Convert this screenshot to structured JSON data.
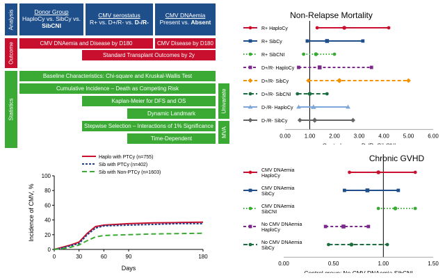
{
  "flow": {
    "side_labels": {
      "analysis": "Analysis",
      "outcome": "Outcome",
      "statistics": "Statistics",
      "univariate": "Univariate",
      "mva": "MVA"
    },
    "analysis": {
      "donor_title": "Donor Group",
      "donor_line": "HaploCy vs. SibCy vs.",
      "donor_bold": "SibCNI",
      "serostatus_title": "CMV serostatus",
      "serostatus_line": "R+ vs. D+/R- vs.",
      "serostatus_bold": "D-/R-",
      "dnaemia_title": "CMV DNAemia",
      "dnaemia_line": "Present vs.",
      "dnaemia_bold": "Absent"
    },
    "outcomes": {
      "o1": "CMV DNAemia and Disease by D180",
      "o2": "CMV Disease by D180",
      "o3": "Standard Transplant Outcomes by 2y"
    },
    "stats": {
      "s1": "Baseline Characteristics: Chi-square and Kruskal-Wallis Test",
      "s2": "Cumulative Incidence – Death as Competing Risk",
      "s3": "Kaplan-Meier for DFS and OS",
      "s4": "Dynamic Landmark",
      "s5": "Stepwise Selection – Interactions of 1% Significance",
      "s6": "Time-Dependent"
    }
  },
  "chart_data": [
    {
      "type": "line",
      "id": "cmv_incidence",
      "xlabel": "Days",
      "ylabel": "Incidence of CMV, %",
      "xlim": [
        0,
        180
      ],
      "ylim": [
        0,
        100
      ],
      "xticks": [
        0,
        30,
        60,
        90,
        180
      ],
      "yticks": [
        0,
        20,
        40,
        60,
        80,
        100
      ],
      "series": [
        {
          "name": "Haplo with PTCy (n=755)",
          "color": "#c8102e",
          "dash": "",
          "x": [
            0,
            10,
            20,
            30,
            40,
            50,
            60,
            90,
            120,
            150,
            180
          ],
          "y": [
            0,
            3,
            6,
            10,
            22,
            31,
            33,
            35,
            36,
            36.5,
            37
          ]
        },
        {
          "name": "Sib with PTCy (n=402)",
          "color": "#1f3f8a",
          "dash": "3,2",
          "x": [
            0,
            10,
            20,
            30,
            40,
            50,
            60,
            90,
            120,
            150,
            180
          ],
          "y": [
            0,
            2,
            5,
            8,
            20,
            29,
            32,
            33,
            34,
            35,
            35
          ]
        },
        {
          "name": "Sib with Non-PTCy (n=1603)",
          "color": "#3aaa35",
          "dash": "7,4",
          "x": [
            0,
            10,
            20,
            30,
            40,
            50,
            60,
            90,
            120,
            150,
            180
          ],
          "y": [
            0,
            1,
            3,
            6,
            12,
            17,
            19,
            20,
            21,
            21.5,
            22
          ]
        }
      ]
    },
    {
      "type": "forest",
      "id": "nrm",
      "title": "Non-Relapse Mortality",
      "xlabel": "Control group: D-/R- SibCNI",
      "xlim": [
        0,
        6
      ],
      "xticks": [
        "0.00",
        "1.00",
        "2.00",
        "3.00",
        "4.00",
        "5.00",
        "6.00"
      ],
      "reference": 1,
      "rows": [
        {
          "label": "R+ HaploCy",
          "color": "#c8102e",
          "marker": "circle",
          "dash": "",
          "est": 2.4,
          "lo": 1.3,
          "hi": 4.2
        },
        {
          "label": "R+ SibCy",
          "color": "#1f4f8a",
          "marker": "square",
          "dash": "",
          "est": 1.7,
          "lo": 0.9,
          "hi": 3.15
        },
        {
          "label": "R+ SibCNI",
          "color": "#3aaa35",
          "marker": "circle",
          "dash": "1.5,2.5",
          "est": 1.25,
          "lo": 0.75,
          "hi": 2.0
        },
        {
          "label": "D+/R- HaploCy",
          "color": "#7b2a8c",
          "marker": "square",
          "dash": "4,3",
          "est": 1.4,
          "lo": 0.55,
          "hi": 3.5
        },
        {
          "label": "D+/R- SibCy",
          "color": "#f39200",
          "marker": "diamond",
          "dash": "5,3",
          "est": 2.2,
          "lo": 0.95,
          "hi": 5.0
        },
        {
          "label": "D+/R- SibCNI",
          "color": "#1b6e40",
          "marker": "circle",
          "dash": "6,3",
          "est": 1.0,
          "lo": 0.5,
          "hi": 1.7
        },
        {
          "label": "D-/R- HaploCy",
          "color": "#7ea6d8",
          "marker": "triangle",
          "dash": "",
          "est": 1.15,
          "lo": 0.55,
          "hi": 2.55
        },
        {
          "label": "D-/R- SibCy",
          "color": "#666666",
          "marker": "diamond",
          "dash": "",
          "est": 1.2,
          "lo": 0.6,
          "hi": 2.75
        }
      ]
    },
    {
      "type": "forest",
      "id": "cgvhd",
      "title": "Chronic GVHD",
      "xlabel": "Control group: No CMV DNAemia SibCNI",
      "xlim": [
        0,
        1.5
      ],
      "xticks": [
        "0.00",
        "0.50",
        "1.00",
        "1.50"
      ],
      "reference": 1,
      "rows": [
        {
          "label": "CMV DNAemia HaploCy",
          "color": "#c8102e",
          "marker": "circle",
          "dash": "",
          "est": 0.95,
          "lo": 0.66,
          "hi": 1.32
        },
        {
          "label": "CMV DNAemia SibCy",
          "color": "#1f4f8a",
          "marker": "square",
          "dash": "",
          "est": 0.84,
          "lo": 0.61,
          "hi": 1.15
        },
        {
          "label": "CMV DNAemia SibCNI",
          "color": "#3aaa35",
          "marker": "circle",
          "dash": "1.5,2.5",
          "est": 1.12,
          "lo": 0.95,
          "hi": 1.32
        },
        {
          "label": "No CMV DNAemia HaploCy",
          "color": "#7b2a8c",
          "marker": "square",
          "dash": "4,3",
          "est": 0.6,
          "lo": 0.42,
          "hi": 0.85
        },
        {
          "label": "No CMV DNAemia SibCy",
          "color": "#1b6e40",
          "marker": "circle",
          "dash": "6,3",
          "est": 0.68,
          "lo": 0.45,
          "hi": 1.04
        }
      ]
    }
  ]
}
